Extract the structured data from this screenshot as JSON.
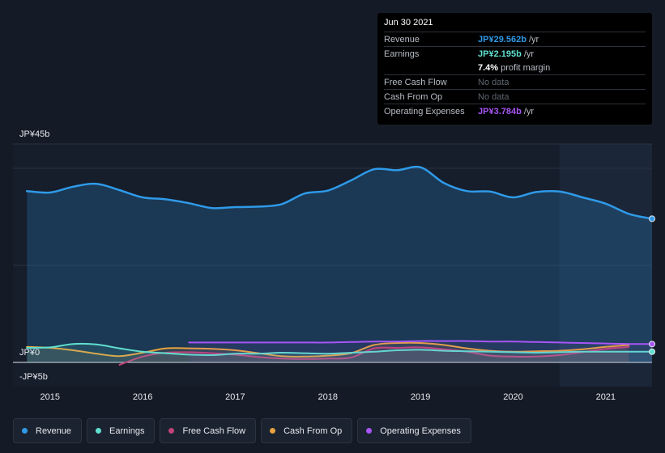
{
  "tooltip": {
    "date": "Jun 30 2021",
    "rows": [
      {
        "label": "Revenue",
        "value": "JP¥29.562b",
        "unit": "/yr",
        "color": "#2f9ae8"
      },
      {
        "label": "Earnings",
        "value": "JP¥2.195b",
        "unit": "/yr",
        "color": "#60e0cf"
      },
      {
        "label": "",
        "value": "7.4%",
        "unit": "profit margin",
        "color": "#ffffff"
      },
      {
        "label": "Free Cash Flow",
        "value": "No data",
        "unit": "",
        "color": ""
      },
      {
        "label": "Cash From Op",
        "value": "No data",
        "unit": "",
        "color": ""
      },
      {
        "label": "Operating Expenses",
        "value": "JP¥3.784b",
        "unit": "/yr",
        "color": "#a855f7"
      }
    ]
  },
  "chart_data": {
    "type": "area",
    "y_labels": [
      "JP¥45b",
      "JP¥0",
      "-JP¥5b"
    ],
    "ylim": [
      -5,
      45
    ],
    "x_ticks": [
      "2015",
      "2016",
      "2017",
      "2018",
      "2019",
      "2020",
      "2021"
    ],
    "xlim": [
      2014.6,
      2021.5
    ],
    "forecast_start": 2020.5,
    "series": [
      {
        "name": "Revenue",
        "color": "#2f9ae8",
        "x": [
          2014.75,
          2015.0,
          2015.25,
          2015.5,
          2015.75,
          2016.0,
          2016.25,
          2016.5,
          2016.75,
          2017.0,
          2017.25,
          2017.5,
          2017.75,
          2018.0,
          2018.25,
          2018.5,
          2018.75,
          2019.0,
          2019.25,
          2019.5,
          2019.75,
          2020.0,
          2020.25,
          2020.5,
          2020.75,
          2021.0,
          2021.25,
          2021.5
        ],
        "y": [
          35.3,
          35.0,
          36.2,
          36.8,
          35.5,
          34.0,
          33.6,
          32.8,
          31.8,
          32.0,
          32.1,
          32.6,
          34.8,
          35.4,
          37.5,
          39.8,
          39.6,
          40.2,
          37.0,
          35.3,
          35.2,
          34.0,
          35.1,
          35.2,
          34.0,
          32.7,
          30.6,
          29.6
        ]
      },
      {
        "name": "Earnings",
        "color": "#60e0cf",
        "x": [
          2014.75,
          2015.0,
          2015.25,
          2015.5,
          2015.75,
          2016.0,
          2016.25,
          2016.5,
          2016.75,
          2017.0,
          2017.25,
          2017.5,
          2017.75,
          2018.0,
          2018.25,
          2018.5,
          2018.75,
          2019.0,
          2019.25,
          2019.5,
          2019.75,
          2020.0,
          2020.25,
          2020.5,
          2020.75,
          2021.0,
          2021.25,
          2021.5
        ],
        "y": [
          3.0,
          3.1,
          3.8,
          3.7,
          2.9,
          2.2,
          1.9,
          1.6,
          1.5,
          1.8,
          1.8,
          2.0,
          1.9,
          1.8,
          2.0,
          2.2,
          2.5,
          2.6,
          2.4,
          2.3,
          2.2,
          2.1,
          2.0,
          2.1,
          2.2,
          2.2,
          2.2,
          2.2
        ]
      },
      {
        "name": "Free Cash Flow",
        "color": "#c2437a",
        "x": [
          2015.75,
          2016.0,
          2016.25,
          2016.5,
          2016.75,
          2017.0,
          2017.25,
          2017.5,
          2017.75,
          2018.0,
          2018.25,
          2018.5,
          2018.75,
          2019.0,
          2019.25,
          2019.5,
          2019.75,
          2020.0,
          2020.25,
          2020.5,
          2020.75,
          2021.0,
          2021.25
        ],
        "y": [
          -0.5,
          1.2,
          2.0,
          2.1,
          1.9,
          1.6,
          1.1,
          0.8,
          0.7,
          0.8,
          1.0,
          2.9,
          3.0,
          3.1,
          2.7,
          2.2,
          1.4,
          1.2,
          1.2,
          1.5,
          2.1,
          2.8,
          3.2
        ]
      },
      {
        "name": "Cash From Op",
        "color": "#e8a23f",
        "x": [
          2014.75,
          2015.0,
          2015.25,
          2015.5,
          2015.75,
          2016.0,
          2016.25,
          2016.5,
          2016.75,
          2017.0,
          2017.25,
          2017.5,
          2017.75,
          2018.0,
          2018.25,
          2018.5,
          2018.75,
          2019.0,
          2019.25,
          2019.5,
          2019.75,
          2020.0,
          2020.25,
          2020.5,
          2020.75,
          2021.0,
          2021.25
        ],
        "y": [
          3.2,
          3.0,
          2.5,
          1.8,
          1.3,
          2.0,
          2.9,
          2.9,
          2.8,
          2.5,
          1.9,
          1.3,
          1.2,
          1.4,
          1.9,
          3.6,
          4.0,
          4.0,
          3.6,
          2.9,
          2.4,
          2.2,
          2.3,
          2.4,
          2.7,
          3.2,
          3.6
        ]
      },
      {
        "name": "Operating Expenses",
        "color": "#a855f7",
        "x": [
          2016.5,
          2016.75,
          2017.0,
          2017.25,
          2017.5,
          2017.75,
          2018.0,
          2018.25,
          2018.5,
          2018.75,
          2019.0,
          2019.25,
          2019.5,
          2019.75,
          2020.0,
          2020.25,
          2020.5,
          2020.75,
          2021.0,
          2021.25,
          2021.5
        ],
        "y": [
          4.1,
          4.1,
          4.1,
          4.1,
          4.1,
          4.1,
          4.1,
          4.2,
          4.3,
          4.3,
          4.4,
          4.4,
          4.4,
          4.3,
          4.3,
          4.2,
          4.1,
          4.0,
          3.9,
          3.8,
          3.78
        ]
      }
    ]
  },
  "legend": [
    {
      "label": "Revenue",
      "color": "#2f9ae8"
    },
    {
      "label": "Earnings",
      "color": "#60e0cf"
    },
    {
      "label": "Free Cash Flow",
      "color": "#c2437a"
    },
    {
      "label": "Cash From Op",
      "color": "#e8a23f"
    },
    {
      "label": "Operating Expenses",
      "color": "#a855f7"
    }
  ]
}
